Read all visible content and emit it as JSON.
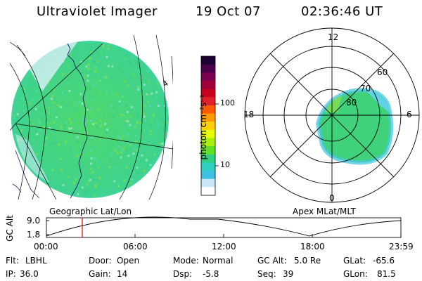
{
  "header": {
    "instrument": "Ultraviolet Imager",
    "date": "19 Oct 07",
    "time": "02:36:46 UT"
  },
  "colorbar": {
    "label": "photon cm⁻²s⁻¹",
    "ticks": [
      "100",
      "10"
    ],
    "colors": [
      "#1a0033",
      "#4b004b",
      "#7a0052",
      "#a0003a",
      "#c8001e",
      "#e0202a",
      "#ff5a00",
      "#ff9a00",
      "#ffd000",
      "#e8ff00",
      "#a8f000",
      "#60e020",
      "#30d080",
      "#30d0c0",
      "#40c0e0",
      "#c8e8f8",
      "#ffffff"
    ]
  },
  "geo_panel": {
    "label": "Geographic Lat/Lon",
    "blob_color": "#49d67a",
    "blob_edge_color": "#40c8d8"
  },
  "polar_panel": {
    "label": "Apex MLat/MLT",
    "mlt_labels": {
      "top": "12",
      "left": "18",
      "right": "6",
      "bottom": "0"
    },
    "lat_labels": [
      "60",
      "70",
      "80"
    ]
  },
  "altitude_plot": {
    "ylabel": "GC Alt",
    "yticks": [
      "9.0",
      "1.8"
    ],
    "xticks": [
      "00:00",
      "06:00",
      "12:00",
      "18:00",
      "23:59"
    ],
    "current_marker_color": "#e00000"
  },
  "status": {
    "row1": [
      {
        "key": "Flt:",
        "val": "LBHL"
      },
      {
        "key": "Door:",
        "val": "Open"
      },
      {
        "key": "Mode:",
        "val": "Normal"
      },
      {
        "key": "GC Alt:",
        "val": "5.0 Re"
      },
      {
        "key": "GLat:",
        "val": "-65.6"
      }
    ],
    "row2": [
      {
        "key": "IP:",
        "val": "36.0"
      },
      {
        "key": "Gain:",
        "val": "14"
      },
      {
        "key": "Dsp:",
        "val": "-5.8"
      },
      {
        "key": "Seq:",
        "val": "39"
      },
      {
        "key": "GLon:",
        "val": "81.5"
      }
    ]
  }
}
